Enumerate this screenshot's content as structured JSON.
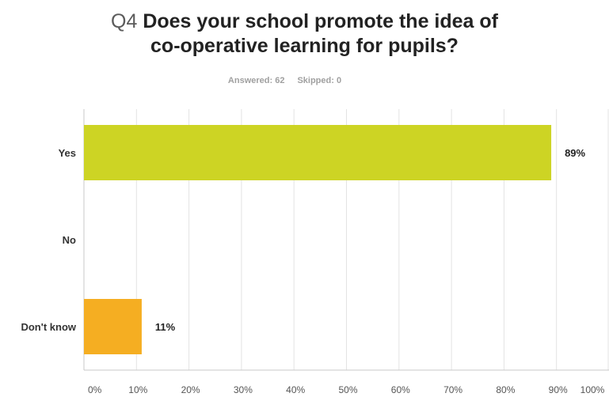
{
  "question": {
    "number": "Q4",
    "text_line1": "Does your school promote the idea of",
    "text_line2": "co-operative learning for pupils?"
  },
  "stats": {
    "answered": "Answered: 62",
    "skipped": "Skipped: 0"
  },
  "chart_data": {
    "type": "bar",
    "orientation": "horizontal",
    "categories": [
      "Yes",
      "No",
      "Don't know"
    ],
    "values": [
      89,
      0,
      11
    ],
    "value_labels": [
      "89%",
      "",
      "11%"
    ],
    "colors": [
      "#cdd424",
      "#5ba8d8",
      "#f5ae22"
    ],
    "xlim": [
      0,
      100
    ],
    "xticks": [
      "0%",
      "10%",
      "20%",
      "30%",
      "40%",
      "50%",
      "60%",
      "70%",
      "80%",
      "90%",
      "100%"
    ],
    "grid": true
  }
}
